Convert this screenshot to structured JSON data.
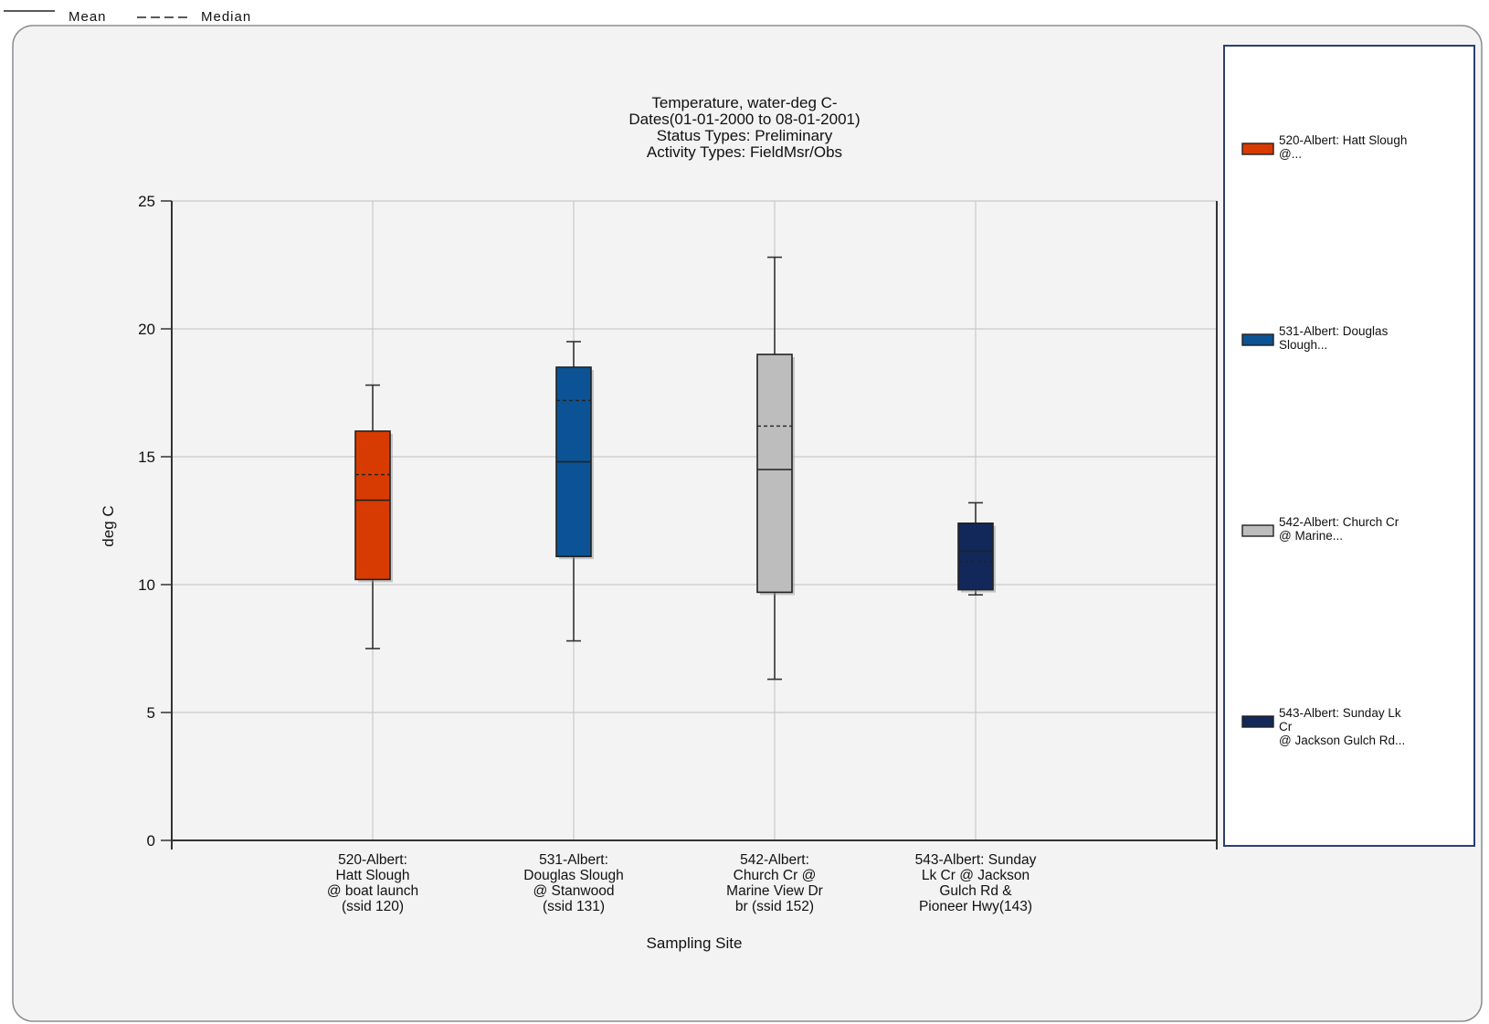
{
  "top_key": {
    "mean_label": "Mean",
    "median_label": "Median"
  },
  "chart_data": {
    "type": "box",
    "title_lines": [
      "Temperature, water-deg C-",
      "Dates(01-01-2000 to 08-01-2001)",
      "Status Types: Preliminary",
      "Activity Types: FieldMsr/Obs"
    ],
    "xlabel": "Sampling Site",
    "ylabel": "deg C",
    "ylim": [
      0,
      25
    ],
    "yticks": [
      0,
      5,
      10,
      15,
      20,
      25
    ],
    "grid": true,
    "legend_position": "right",
    "series": [
      {
        "label_lines": [
          "520-Albert:",
          "Hatt Slough",
          "@ boat launch",
          "(ssid 120)"
        ],
        "legend_lines": [
          "520-Albert: Hatt Slough",
          "@..."
        ],
        "color": "#d83b01",
        "min": 7.5,
        "q1": 10.2,
        "median": 13.3,
        "mean": 14.3,
        "q3": 16.0,
        "max": 17.8
      },
      {
        "label_lines": [
          "531-Albert:",
          "Douglas Slough",
          "@ Stanwood",
          "(ssid 131)"
        ],
        "legend_lines": [
          "531-Albert: Douglas",
          "Slough..."
        ],
        "color": "#0b5394",
        "min": 7.8,
        "q1": 11.1,
        "median": 14.8,
        "mean": 17.2,
        "q3": 18.5,
        "max": 19.5
      },
      {
        "label_lines": [
          "542-Albert:",
          "Church Cr @",
          "Marine View Dr",
          "br (ssid 152)"
        ],
        "legend_lines": [
          "542-Albert: Church Cr",
          "@  Marine..."
        ],
        "color": "#bdbdbd",
        "min": 6.3,
        "q1": 9.7,
        "median": 14.5,
        "mean": 16.2,
        "q3": 19.0,
        "max": 22.8
      },
      {
        "label_lines": [
          "543-Albert: Sunday",
          "Lk Cr @ Jackson",
          "Gulch Rd &",
          "Pioneer Hwy(143)"
        ],
        "legend_lines": [
          "543-Albert: Sunday Lk",
          "Cr",
          "@ Jackson  Gulch Rd..."
        ],
        "color": "#12285a",
        "min": 9.6,
        "q1": 9.8,
        "median": 11.3,
        "mean": 10.9,
        "q3": 12.4,
        "max": 13.2
      }
    ]
  }
}
